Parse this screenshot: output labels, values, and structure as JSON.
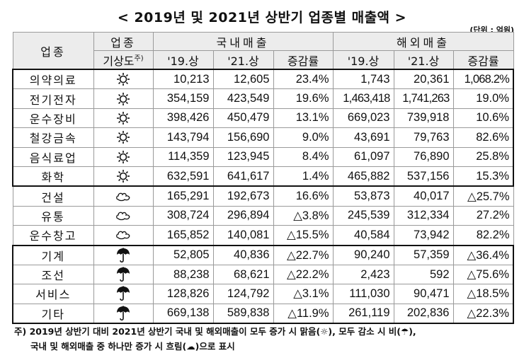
{
  "title": "< 2019년 및 2021년 상반기 업종별 매출액 >",
  "unit": "(단위 : 억원)",
  "header": {
    "industry": "업종",
    "weather_top": "업종",
    "weather_bottom": "기상도",
    "weather_sup": "주)",
    "domestic": "국내매출",
    "overseas": "해외매출",
    "sub": [
      "'19.상",
      "'21.상",
      "증감률",
      "'19.상",
      "'21.상",
      "증감률"
    ]
  },
  "rows": [
    {
      "name": "의약의료",
      "weather": "sunny",
      "d19": "10,213",
      "d21": "12,605",
      "drate": "23.4%",
      "o19": "1,743",
      "o21": "20,361",
      "orate": "1,068.2%"
    },
    {
      "name": "전기전자",
      "weather": "sunny",
      "d19": "354,159",
      "d21": "423,549",
      "drate": "19.6%",
      "o19": "1,463,418",
      "o21": "1,741,263",
      "orate": "19.0%"
    },
    {
      "name": "운수장비",
      "weather": "sunny",
      "d19": "398,426",
      "d21": "450,479",
      "drate": "13.1%",
      "o19": "669,023",
      "o21": "739,918",
      "orate": "10.6%"
    },
    {
      "name": "철강금속",
      "weather": "sunny",
      "d19": "143,794",
      "d21": "156,690",
      "drate": "9.0%",
      "o19": "43,691",
      "o21": "79,763",
      "orate": "82.6%"
    },
    {
      "name": "음식료업",
      "weather": "sunny",
      "d19": "114,359",
      "d21": "123,945",
      "drate": "8.4%",
      "o19": "61,097",
      "o21": "76,890",
      "orate": "25.8%"
    },
    {
      "name": "화학",
      "weather": "sunny",
      "d19": "632,591",
      "d21": "641,617",
      "drate": "1.4%",
      "o19": "465,882",
      "o21": "537,156",
      "orate": "15.3%"
    },
    {
      "name": "건설",
      "weather": "cloudy",
      "d19": "165,291",
      "d21": "192,673",
      "drate": "16.6%",
      "o19": "53,873",
      "o21": "40,017",
      "orate": "△25.7%"
    },
    {
      "name": "유통",
      "weather": "cloudy",
      "d19": "308,724",
      "d21": "296,894",
      "drate": "△3.8%",
      "o19": "245,539",
      "o21": "312,334",
      "orate": "27.2%"
    },
    {
      "name": "운수창고",
      "weather": "cloudy",
      "d19": "165,852",
      "d21": "140,081",
      "drate": "△15.5%",
      "o19": "40,584",
      "o21": "73,942",
      "orate": "82.2%"
    },
    {
      "name": "기계",
      "weather": "rainy",
      "d19": "52,805",
      "d21": "40,836",
      "drate": "△22.7%",
      "o19": "90,240",
      "o21": "57,359",
      "orate": "△36.4%"
    },
    {
      "name": "조선",
      "weather": "rainy",
      "d19": "88,238",
      "d21": "68,621",
      "drate": "△22.2%",
      "o19": "2,423",
      "o21": "592",
      "orate": "△75.6%"
    },
    {
      "name": "서비스",
      "weather": "rainy",
      "d19": "128,826",
      "d21": "124,792",
      "drate": "△3.1%",
      "o19": "111,030",
      "o21": "90,471",
      "orate": "△18.5%"
    },
    {
      "name": "기타",
      "weather": "rainy",
      "d19": "669,138",
      "d21": "589,838",
      "drate": "△11.9%",
      "o19": "261,119",
      "o21": "202,836",
      "orate": "△22.3%"
    }
  ],
  "note": {
    "line1": "주) 2019년 상반기 대비 2021년 상반기 국내 및 해외매출이 모두 증가 시 맑음(☼), 모두 감소 시 비(☂),",
    "line2": "국내 및 해외매출 중 하나만 증가 시 흐림(☁)으로 표시"
  }
}
